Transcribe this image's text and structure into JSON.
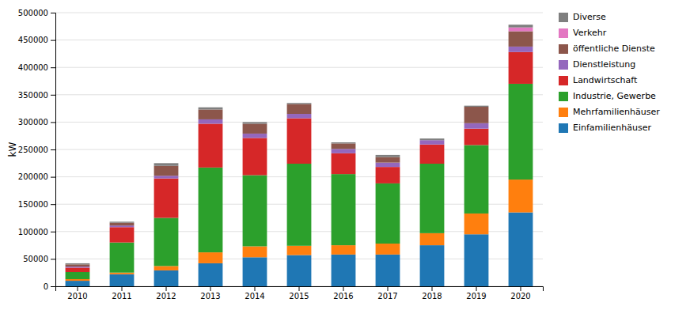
{
  "chart_data": {
    "type": "bar",
    "stacked": true,
    "ylabel": "kW",
    "categories": [
      "2010",
      "2011",
      "2012",
      "2013",
      "2014",
      "2015",
      "2016",
      "2017",
      "2018",
      "2019",
      "2020"
    ],
    "series": [
      {
        "name": "Einfamilienhäuser",
        "values": [
          10000,
          22000,
          29000,
          42000,
          53000,
          57000,
          58000,
          58000,
          75000,
          95000,
          135000
        ]
      },
      {
        "name": "Mehrfamilienhäuser",
        "values": [
          3000,
          3000,
          8000,
          20000,
          20000,
          17000,
          17000,
          20000,
          22000,
          38000,
          60000
        ]
      },
      {
        "name": "Industrie, Gewerbe",
        "values": [
          13000,
          55000,
          88000,
          155000,
          130000,
          150000,
          130000,
          110000,
          127000,
          125000,
          175000
        ]
      },
      {
        "name": "Landwirtschaft",
        "values": [
          8000,
          28000,
          72000,
          80000,
          68000,
          83000,
          38000,
          30000,
          35000,
          30000,
          58000
        ]
      },
      {
        "name": "Dienstleistung",
        "values": [
          2000,
          3000,
          5000,
          8000,
          8000,
          8000,
          8000,
          8000,
          8000,
          10000,
          10000
        ]
      },
      {
        "name": "öffentliche Dienste",
        "values": [
          4000,
          5000,
          18000,
          18000,
          18000,
          18000,
          10000,
          10000,
          0,
          30000,
          28000
        ]
      },
      {
        "name": "Verkehr",
        "values": [
          0,
          0,
          0,
          0,
          0,
          0,
          0,
          0,
          0,
          0,
          7000
        ]
      },
      {
        "name": "Diverse",
        "values": [
          2000,
          2000,
          5000,
          4000,
          3000,
          2000,
          2000,
          4000,
          3000,
          2000,
          5000
        ]
      }
    ],
    "ylim": [
      0,
      500000
    ],
    "yticks": [
      0,
      50000,
      100000,
      150000,
      200000,
      250000,
      300000,
      350000,
      400000,
      450000,
      500000
    ],
    "grid": true,
    "legend": "right"
  }
}
